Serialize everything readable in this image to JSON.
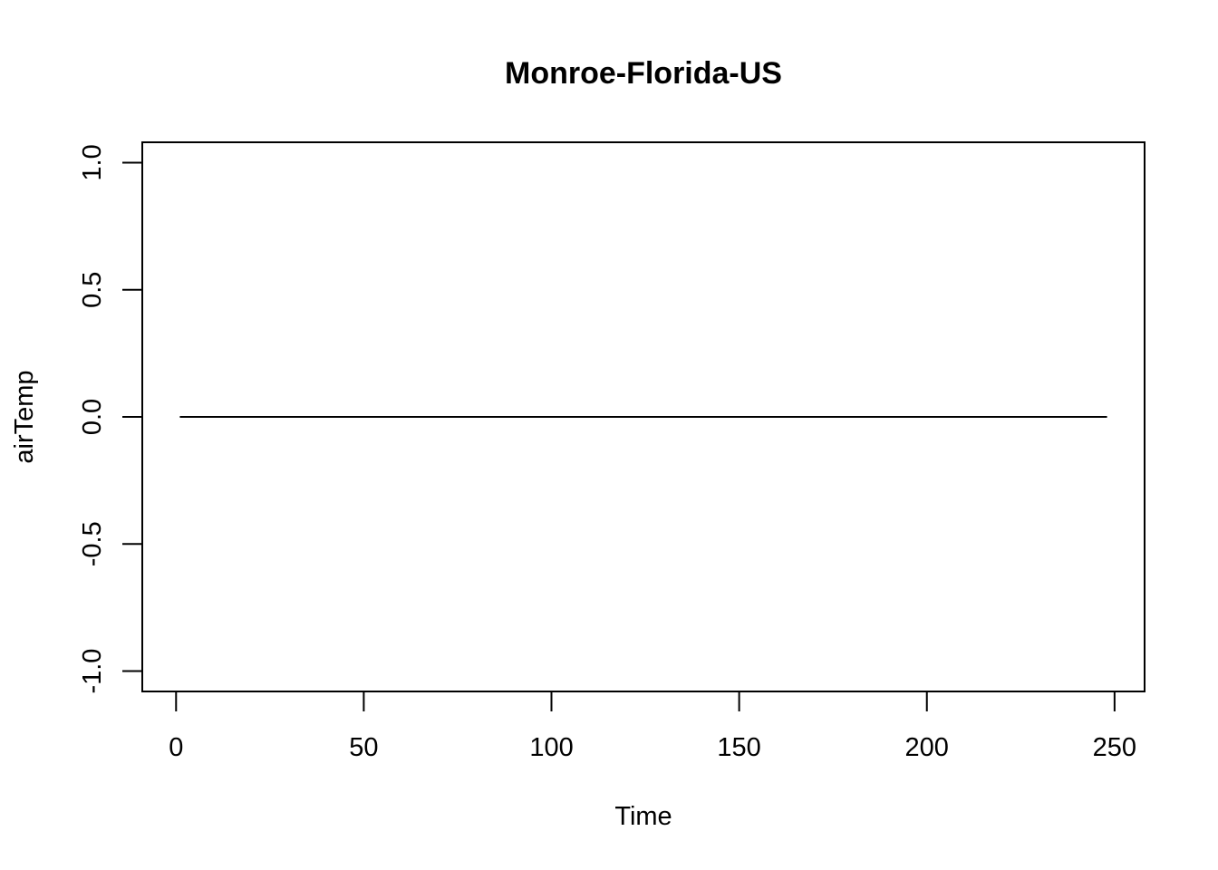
{
  "chart_data": {
    "type": "line",
    "title": "Monroe-Florida-US",
    "xlabel": "Time",
    "ylabel": "airTemp",
    "xlim": [
      -9,
      258
    ],
    "ylim": [
      -1.08,
      1.08
    ],
    "x_ticks": [
      0,
      50,
      100,
      150,
      200,
      250
    ],
    "x_tick_labels": [
      "0",
      "50",
      "100",
      "150",
      "200",
      "250"
    ],
    "y_ticks": [
      -1.0,
      -0.5,
      0.0,
      0.5,
      1.0
    ],
    "y_tick_labels": [
      "-1.0",
      "-0.5",
      "0.0",
      "0.5",
      "1.0"
    ],
    "grid": false,
    "series": [
      {
        "x": [
          1,
          248
        ],
        "values": [
          0,
          0
        ]
      }
    ]
  }
}
